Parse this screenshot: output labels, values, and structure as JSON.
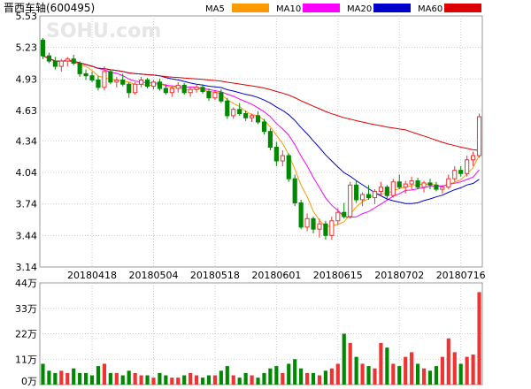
{
  "chart_data": {
    "type": "candlestick",
    "title": "晋西车轴(600495)",
    "price_ticks": [
      5.53,
      5.23,
      4.93,
      4.63,
      4.34,
      4.04,
      3.74,
      3.44,
      3.14
    ],
    "volume_ticks": [
      "44万",
      "33万",
      "22万",
      "11万",
      "0万"
    ],
    "volume_values": [
      44,
      33,
      22,
      11,
      0
    ],
    "date_labels": [
      "20180418",
      "20180504",
      "20180518",
      "20180601",
      "20180615",
      "20180702",
      "20180716"
    ],
    "date_label_index": [
      8,
      18,
      28,
      38,
      48,
      58,
      68
    ],
    "ma_legend": [
      {
        "name": "MA5",
        "color": "#ff9900"
      },
      {
        "name": "MA10",
        "color": "#ff00ff"
      },
      {
        "name": "MA20",
        "color": "#0000cc"
      },
      {
        "name": "MA60",
        "color": "#dd0000"
      }
    ],
    "colors": {
      "up": "#ee3333",
      "down": "#008800"
    },
    "candles": [
      [
        5.3,
        5.32,
        5.12,
        5.15
      ],
      [
        5.15,
        5.18,
        5.08,
        5.1
      ],
      [
        5.1,
        5.14,
        5.02,
        5.05
      ],
      [
        5.05,
        5.12,
        5.0,
        5.1
      ],
      [
        5.1,
        5.14,
        5.05,
        5.12
      ],
      [
        5.12,
        5.16,
        5.06,
        5.08
      ],
      [
        5.08,
        5.1,
        4.95,
        4.98
      ],
      [
        4.98,
        5.02,
        4.92,
        4.96
      ],
      [
        4.96,
        5.0,
        4.9,
        4.92
      ],
      [
        4.92,
        4.96,
        4.82,
        4.85
      ],
      [
        4.85,
        5.05,
        4.82,
        5.0
      ],
      [
        5.0,
        5.02,
        4.88,
        4.9
      ],
      [
        4.9,
        4.95,
        4.85,
        4.92
      ],
      [
        4.92,
        4.98,
        4.86,
        4.88
      ],
      [
        4.88,
        4.9,
        4.75,
        4.8
      ],
      [
        4.8,
        4.9,
        4.78,
        4.88
      ],
      [
        4.88,
        4.95,
        4.85,
        4.92
      ],
      [
        4.92,
        4.94,
        4.84,
        4.86
      ],
      [
        4.86,
        4.92,
        4.83,
        4.9
      ],
      [
        4.9,
        4.93,
        4.82,
        4.84
      ],
      [
        4.84,
        4.88,
        4.78,
        4.8
      ],
      [
        4.8,
        4.86,
        4.76,
        4.84
      ],
      [
        4.84,
        4.9,
        4.8,
        4.87
      ],
      [
        4.87,
        4.89,
        4.78,
        4.8
      ],
      [
        4.8,
        4.85,
        4.76,
        4.83
      ],
      [
        4.83,
        4.88,
        4.8,
        4.85
      ],
      [
        4.85,
        4.88,
        4.79,
        4.81
      ],
      [
        4.81,
        4.84,
        4.72,
        4.75
      ],
      [
        4.75,
        4.82,
        4.73,
        4.8
      ],
      [
        4.8,
        4.83,
        4.7,
        4.72
      ],
      [
        4.72,
        4.75,
        4.55,
        4.58
      ],
      [
        4.58,
        4.66,
        4.55,
        4.64
      ],
      [
        4.64,
        4.7,
        4.58,
        4.6
      ],
      [
        4.6,
        4.63,
        4.53,
        4.56
      ],
      [
        4.56,
        4.6,
        4.52,
        4.58
      ],
      [
        4.58,
        4.62,
        4.5,
        4.52
      ],
      [
        4.52,
        4.55,
        4.4,
        4.43
      ],
      [
        4.43,
        4.46,
        4.25,
        4.28
      ],
      [
        4.28,
        4.33,
        4.1,
        4.15
      ],
      [
        4.15,
        4.25,
        4.1,
        4.2
      ],
      [
        4.2,
        4.22,
        3.95,
        3.98
      ],
      [
        3.98,
        4.02,
        3.72,
        3.75
      ],
      [
        3.75,
        3.78,
        3.5,
        3.52
      ],
      [
        3.52,
        3.65,
        3.48,
        3.6
      ],
      [
        3.6,
        3.62,
        3.46,
        3.5
      ],
      [
        3.5,
        3.6,
        3.42,
        3.55
      ],
      [
        3.55,
        3.58,
        3.4,
        3.44
      ],
      [
        3.44,
        3.62,
        3.4,
        3.58
      ],
      [
        3.58,
        3.7,
        3.54,
        3.66
      ],
      [
        3.66,
        3.75,
        3.6,
        3.62
      ],
      [
        3.62,
        3.95,
        3.6,
        3.92
      ],
      [
        3.92,
        3.96,
        3.75,
        3.78
      ],
      [
        3.78,
        3.85,
        3.72,
        3.83
      ],
      [
        3.83,
        3.92,
        3.78,
        3.8
      ],
      [
        3.8,
        3.88,
        3.74,
        3.86
      ],
      [
        3.86,
        3.95,
        3.82,
        3.9
      ],
      [
        3.9,
        3.92,
        3.78,
        3.82
      ],
      [
        3.82,
        3.98,
        3.8,
        3.95
      ],
      [
        3.95,
        4.02,
        3.88,
        3.9
      ],
      [
        3.9,
        3.96,
        3.84,
        3.93
      ],
      [
        3.93,
        4.0,
        3.88,
        3.96
      ],
      [
        3.96,
        3.99,
        3.88,
        3.9
      ],
      [
        3.9,
        3.96,
        3.85,
        3.94
      ],
      [
        3.94,
        3.98,
        3.88,
        3.92
      ],
      [
        3.92,
        3.95,
        3.86,
        3.88
      ],
      [
        3.88,
        3.92,
        3.84,
        3.9
      ],
      [
        3.9,
        4.02,
        3.88,
        3.98
      ],
      [
        3.98,
        4.1,
        3.95,
        4.06
      ],
      [
        4.06,
        4.1,
        4.0,
        4.03
      ],
      [
        4.03,
        4.2,
        4.0,
        4.16
      ],
      [
        4.16,
        4.24,
        4.1,
        4.2
      ],
      [
        4.2,
        4.6,
        4.18,
        4.57
      ]
    ],
    "volumes": [
      9,
      6,
      5,
      6,
      5,
      7,
      5,
      5,
      4,
      8,
      9,
      5,
      5,
      4,
      6,
      5,
      4,
      4,
      3,
      5,
      4,
      3,
      3,
      4,
      5,
      4,
      3,
      4,
      4,
      6,
      8,
      4,
      3,
      5,
      4,
      3,
      5,
      7,
      8,
      5,
      9,
      11,
      7,
      5,
      5,
      4,
      6,
      7,
      9,
      22,
      18,
      12,
      9,
      8,
      7,
      18,
      16,
      9,
      8,
      12,
      14,
      9,
      7,
      6,
      8,
      12,
      20,
      14,
      9,
      12,
      13,
      40
    ]
  }
}
